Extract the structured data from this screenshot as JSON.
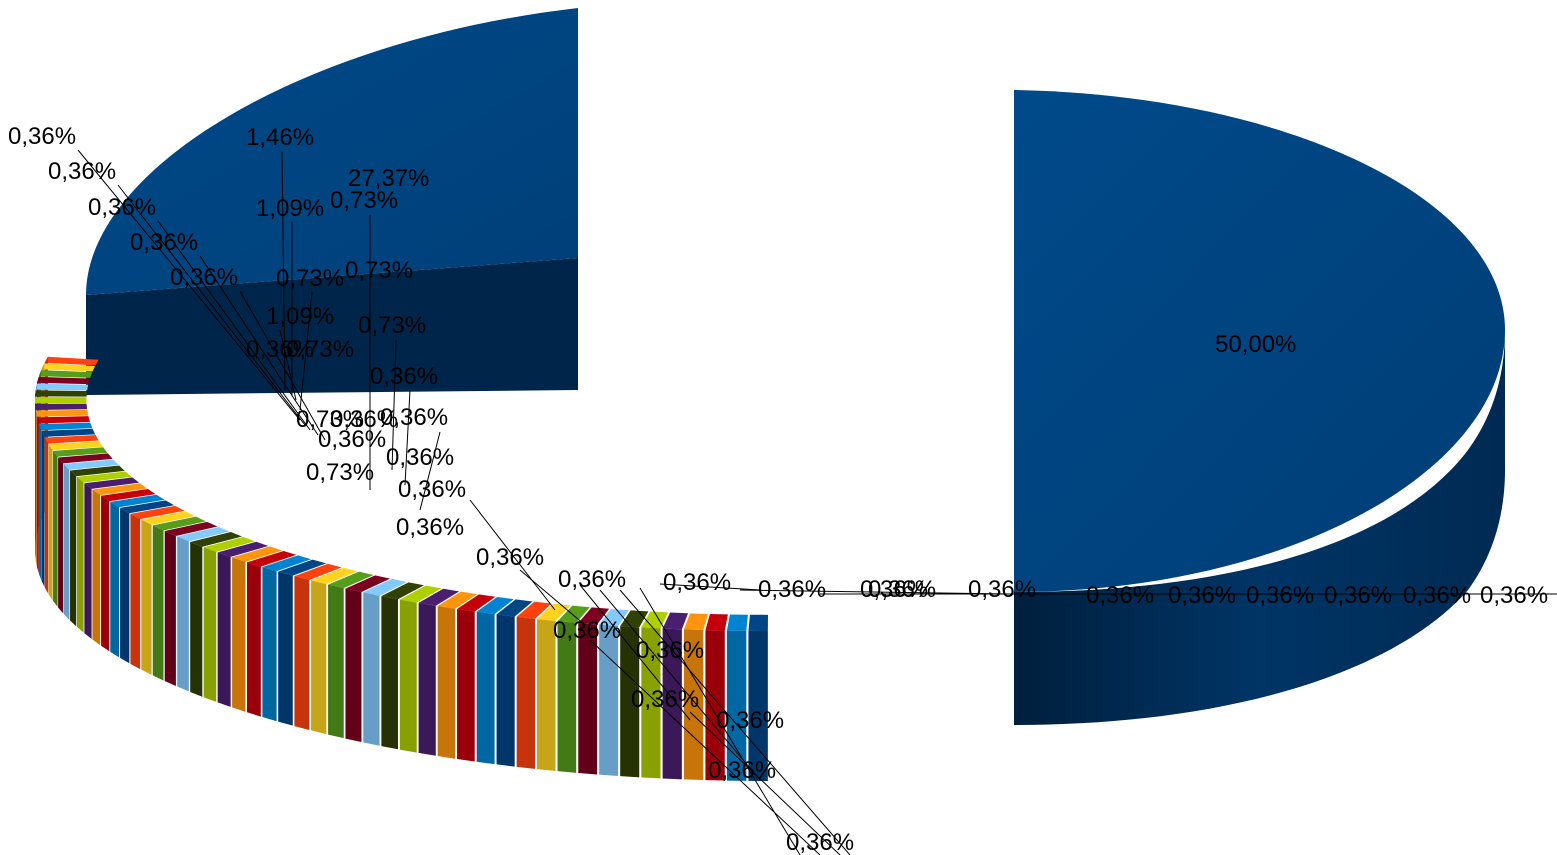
{
  "chart_data": {
    "type": "pie",
    "style": "3d-exploded",
    "title": "",
    "legend": "none",
    "big_slice": {
      "label": "50,00%",
      "value": 50.0,
      "color": "#00457f"
    },
    "mid_slice": {
      "label": "27,37%",
      "value": 27.37,
      "color": "#004586"
    },
    "labels_left": [
      "0,36%",
      "0,36%",
      "0,36%",
      "0,36%",
      "0,36%",
      "1,46%",
      "1,09%",
      "0,73%",
      "1,09%",
      "0,36%",
      "0,73%",
      "27,37%",
      "0,73%",
      "0,73%",
      "0,73%",
      "0,36%",
      "0,36%",
      "0,73%",
      "0,36%",
      "0,36%",
      "0,73%",
      "0,36%",
      "0,36%",
      "0,36%",
      "0,36%",
      "0,36%",
      "0,36%",
      "0,36%",
      "0,36%"
    ],
    "labels_center": [
      "0,36%",
      "0,36%",
      "0,36%",
      "0,36%",
      "0,36%",
      "0,36%",
      "0,36%",
      "0,36%"
    ],
    "labels_right": [
      "0,36%",
      "0,36%",
      "0,36%",
      "0,36%",
      "0,36%",
      "0,36%"
    ],
    "small_slice_value": 0.36,
    "small_slice_colors": [
      "#ff420e",
      "#ffd320",
      "#579d1c",
      "#7e0021",
      "#83caff",
      "#314004",
      "#aecf00",
      "#4b1f6f",
      "#ff950e",
      "#c5000b",
      "#0084d1",
      "#004586"
    ]
  }
}
